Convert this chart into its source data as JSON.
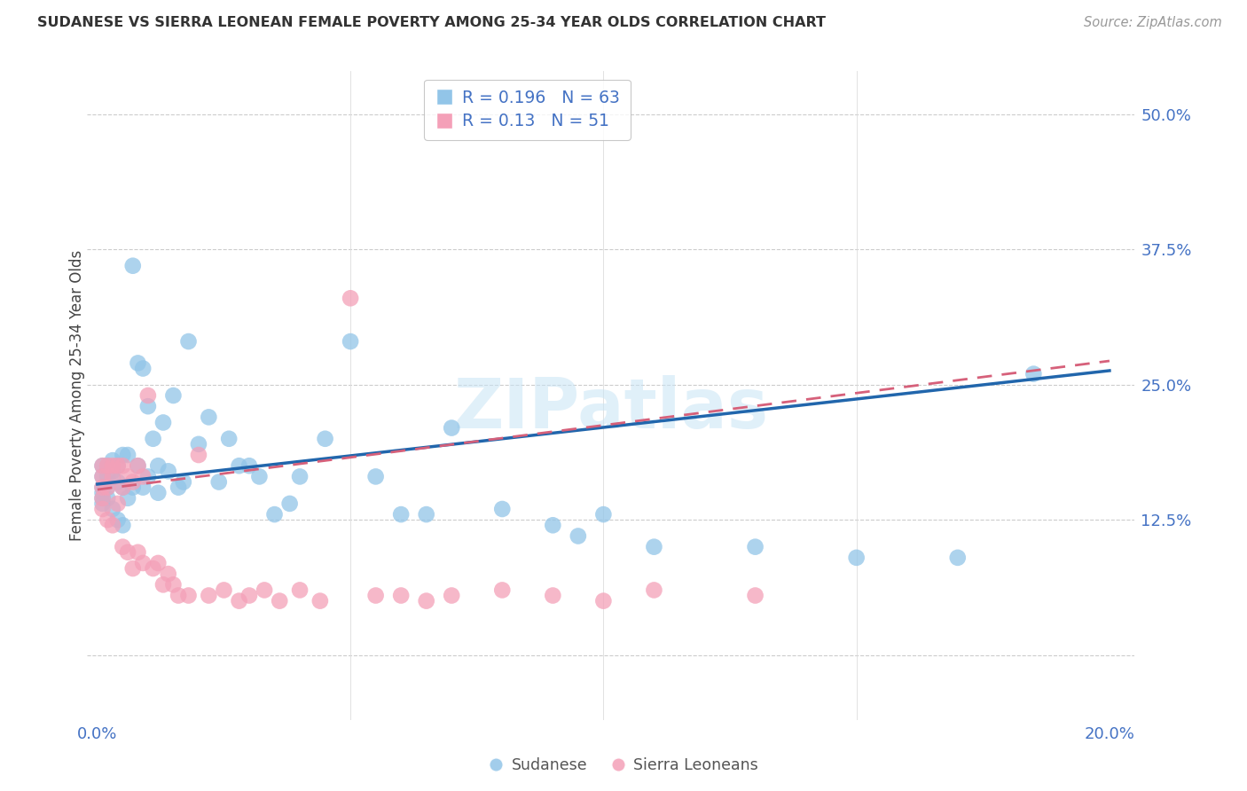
{
  "title": "SUDANESE VS SIERRA LEONEAN FEMALE POVERTY AMONG 25-34 YEAR OLDS CORRELATION CHART",
  "source": "Source: ZipAtlas.com",
  "ylabel": "Female Poverty Among 25-34 Year Olds",
  "xlim_min": -0.002,
  "xlim_max": 0.205,
  "ylim_min": -0.06,
  "ylim_max": 0.54,
  "ytick_vals": [
    0.0,
    0.125,
    0.25,
    0.375,
    0.5
  ],
  "ytick_labels": [
    "",
    "12.5%",
    "25.0%",
    "37.5%",
    "50.0%"
  ],
  "xtick_vals": [
    0.0,
    0.05,
    0.1,
    0.15,
    0.2
  ],
  "xtick_labels": [
    "0.0%",
    "",
    "",
    "",
    "20.0%"
  ],
  "blue_R": 0.196,
  "blue_N": 63,
  "pink_R": 0.13,
  "pink_N": 51,
  "blue_color": "#92C5E8",
  "pink_color": "#F4A0B8",
  "line_blue_color": "#2166AC",
  "line_pink_color": "#D6607A",
  "legend_label_blue": "Sudanese",
  "legend_label_pink": "Sierra Leoneans",
  "blue_line_x0": 0.0,
  "blue_line_y0": 0.158,
  "blue_line_x1": 0.2,
  "blue_line_y1": 0.263,
  "pink_line_x0": 0.0,
  "pink_line_y0": 0.153,
  "pink_line_x1": 0.2,
  "pink_line_y1": 0.272,
  "sudanese_x": [
    0.001,
    0.001,
    0.001,
    0.001,
    0.001,
    0.001,
    0.002,
    0.002,
    0.002,
    0.002,
    0.003,
    0.003,
    0.003,
    0.004,
    0.004,
    0.004,
    0.005,
    0.005,
    0.005,
    0.006,
    0.006,
    0.007,
    0.007,
    0.008,
    0.008,
    0.009,
    0.009,
    0.01,
    0.01,
    0.011,
    0.012,
    0.012,
    0.013,
    0.014,
    0.015,
    0.016,
    0.017,
    0.018,
    0.02,
    0.022,
    0.024,
    0.026,
    0.028,
    0.03,
    0.032,
    0.035,
    0.038,
    0.04,
    0.045,
    0.05,
    0.055,
    0.06,
    0.065,
    0.07,
    0.08,
    0.09,
    0.095,
    0.1,
    0.11,
    0.13,
    0.15,
    0.17,
    0.185
  ],
  "sudanese_y": [
    0.175,
    0.165,
    0.155,
    0.15,
    0.145,
    0.14,
    0.175,
    0.165,
    0.155,
    0.145,
    0.18,
    0.17,
    0.135,
    0.175,
    0.16,
    0.125,
    0.185,
    0.155,
    0.12,
    0.185,
    0.145,
    0.36,
    0.155,
    0.27,
    0.175,
    0.265,
    0.155,
    0.23,
    0.165,
    0.2,
    0.175,
    0.15,
    0.215,
    0.17,
    0.24,
    0.155,
    0.16,
    0.29,
    0.195,
    0.22,
    0.16,
    0.2,
    0.175,
    0.175,
    0.165,
    0.13,
    0.14,
    0.165,
    0.2,
    0.29,
    0.165,
    0.13,
    0.13,
    0.21,
    0.135,
    0.12,
    0.11,
    0.13,
    0.1,
    0.1,
    0.09,
    0.09,
    0.26
  ],
  "sierra_x": [
    0.001,
    0.001,
    0.001,
    0.001,
    0.001,
    0.002,
    0.002,
    0.002,
    0.003,
    0.003,
    0.003,
    0.004,
    0.004,
    0.005,
    0.005,
    0.005,
    0.006,
    0.006,
    0.007,
    0.007,
    0.008,
    0.008,
    0.009,
    0.009,
    0.01,
    0.011,
    0.012,
    0.013,
    0.014,
    0.015,
    0.016,
    0.018,
    0.02,
    0.022,
    0.025,
    0.028,
    0.03,
    0.033,
    0.036,
    0.04,
    0.044,
    0.05,
    0.055,
    0.06,
    0.065,
    0.07,
    0.08,
    0.09,
    0.1,
    0.11,
    0.13
  ],
  "sierra_y": [
    0.175,
    0.165,
    0.155,
    0.145,
    0.135,
    0.175,
    0.155,
    0.125,
    0.175,
    0.165,
    0.12,
    0.175,
    0.14,
    0.175,
    0.155,
    0.1,
    0.165,
    0.095,
    0.16,
    0.08,
    0.175,
    0.095,
    0.165,
    0.085,
    0.24,
    0.08,
    0.085,
    0.065,
    0.075,
    0.065,
    0.055,
    0.055,
    0.185,
    0.055,
    0.06,
    0.05,
    0.055,
    0.06,
    0.05,
    0.06,
    0.05,
    0.33,
    0.055,
    0.055,
    0.05,
    0.055,
    0.06,
    0.055,
    0.05,
    0.06,
    0.055
  ]
}
